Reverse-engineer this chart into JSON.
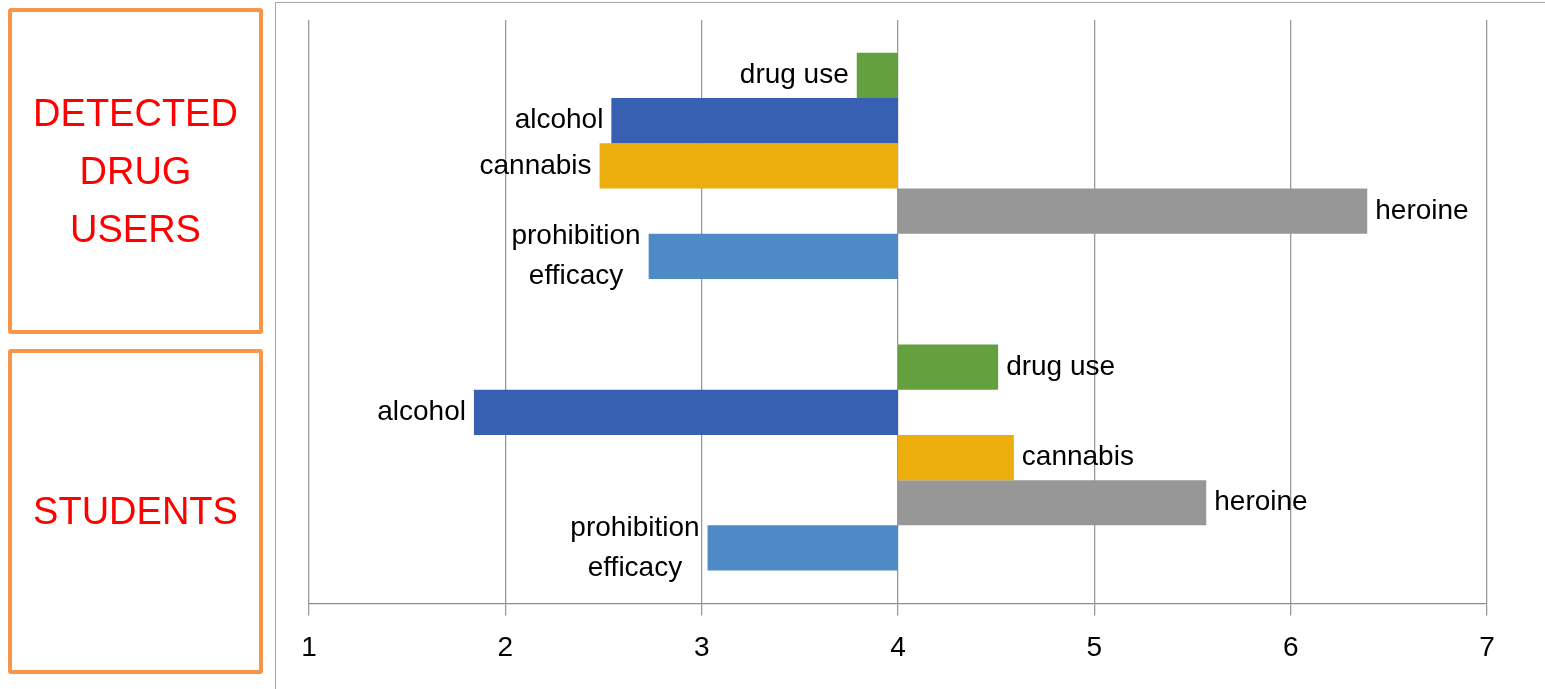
{
  "chart_data": {
    "type": "bar",
    "orientation": "horizontal",
    "categories": [
      "DETECTED DRUG USERS",
      "STUDENTS"
    ],
    "series": [
      {
        "name": "drug use",
        "color": "#64a03e",
        "base": [
          4,
          4
        ],
        "values": [
          -0.21,
          0.51
        ]
      },
      {
        "name": "alcohol",
        "color": "#3760b2",
        "base": [
          4,
          4
        ],
        "values": [
          -1.46,
          -2.16
        ]
      },
      {
        "name": "cannabis",
        "color": "#ebae0c",
        "base": [
          4,
          4
        ],
        "values": [
          -1.52,
          0.59
        ]
      },
      {
        "name": "heroine",
        "color": "#979797",
        "base": [
          4,
          4
        ],
        "values": [
          2.39,
          1.57
        ]
      },
      {
        "name": "prohibition efficacy",
        "color": "#4d8ac6",
        "base": [
          4,
          4
        ],
        "values": [
          -1.27,
          -0.97
        ]
      }
    ],
    "xlim": [
      1,
      7
    ],
    "xticks": [
      1,
      2,
      3,
      4,
      5,
      6,
      7
    ],
    "grid": "x"
  }
}
